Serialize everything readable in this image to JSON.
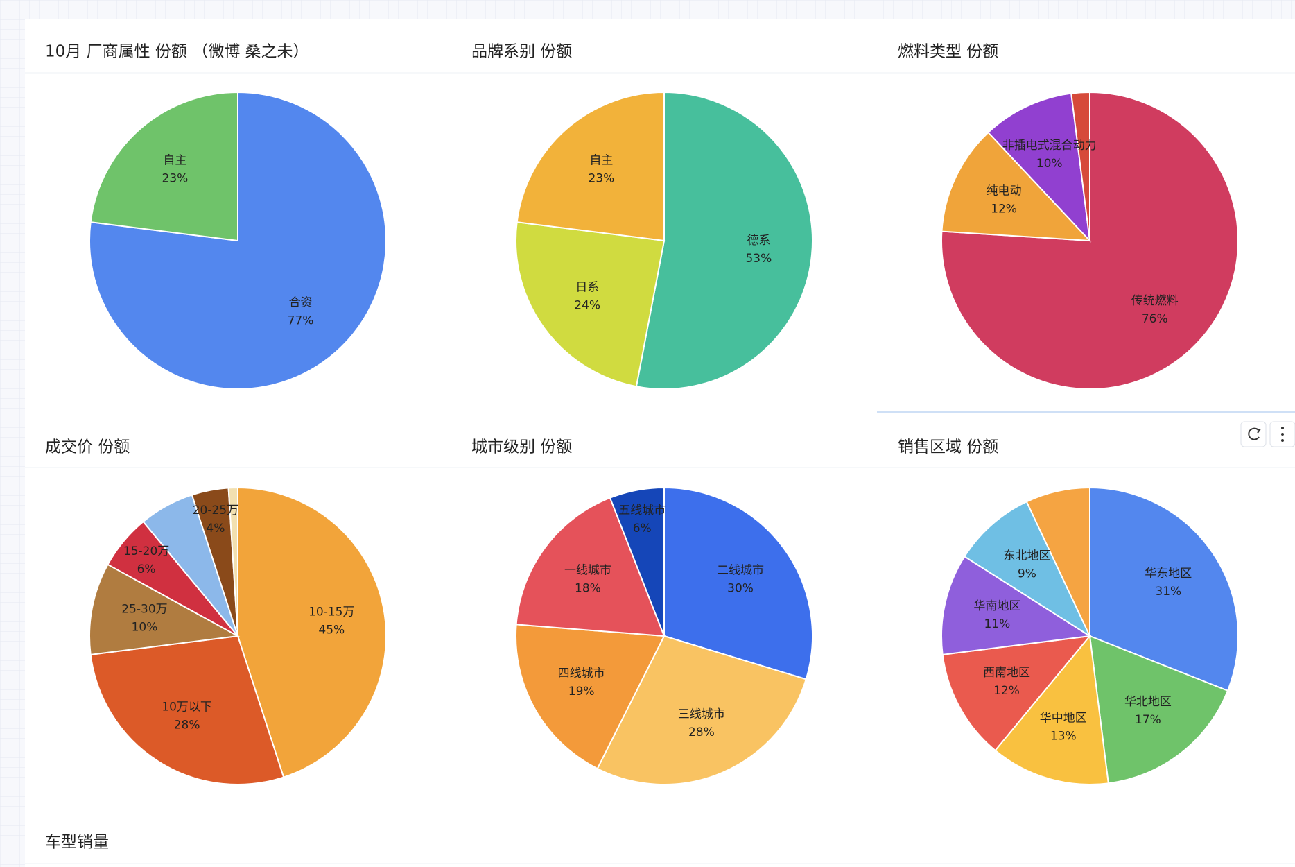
{
  "chart_data": [
    {
      "type": "pie",
      "title": "10月 厂商属性 份额 （微博 桑之未）",
      "categories": [
        "合资",
        "自主"
      ],
      "values": [
        77,
        23
      ],
      "value_labels": [
        "77%",
        "23%"
      ],
      "colors": [
        "#5387ee",
        "#6fc36a"
      ]
    },
    {
      "type": "pie",
      "title": "品牌系别 份额",
      "categories": [
        "德系",
        "日系",
        "自主"
      ],
      "values": [
        53,
        24,
        23
      ],
      "value_labels": [
        "53%",
        "24%",
        "23%"
      ],
      "colors": [
        "#47bf9c",
        "#d0db40",
        "#f2b23a"
      ]
    },
    {
      "type": "pie",
      "title": "燃料类型 份额",
      "categories": [
        "传统燃料",
        "纯电动",
        "非插电式混合动力",
        null
      ],
      "values": [
        76,
        12,
        10,
        2
      ],
      "value_labels": [
        "76%",
        "12%",
        "10%",
        null
      ],
      "colors": [
        "#d03c5f",
        "#f0a43a",
        "#9140d0",
        "#d64a3a"
      ]
    },
    {
      "type": "pie",
      "title": "成交价 份额",
      "categories": [
        "10-15万",
        "10万以下",
        "25-30万",
        "15-20万",
        null,
        "20-25万",
        null
      ],
      "values": [
        45,
        28,
        10,
        6,
        6,
        4,
        1
      ],
      "value_labels": [
        "45%",
        "28%",
        "10%",
        "6%",
        null,
        "4%",
        null
      ],
      "colors": [
        "#f2a43a",
        "#dc5a28",
        "#b07c40",
        "#d03040",
        "#8cb8ea",
        "#8a4a1a",
        "#f2e0b0"
      ]
    },
    {
      "type": "pie",
      "title": "城市级别 份额",
      "categories": [
        "二线城市",
        "三线城市",
        "四线城市",
        "一线城市",
        "五线城市"
      ],
      "values": [
        30,
        28,
        19,
        18,
        6
      ],
      "value_labels": [
        "30%",
        "28%",
        "19%",
        "18%",
        "6%"
      ],
      "colors": [
        "#3d6fec",
        "#f9c362",
        "#f39a3a",
        "#e5525a",
        "#1546b8"
      ]
    },
    {
      "type": "pie",
      "title": "销售区域 份额",
      "categories": [
        "华东地区",
        "华北地区",
        "华中地区",
        "西南地区",
        "华南地区",
        "东北地区",
        null
      ],
      "values": [
        31,
        17,
        13,
        12,
        11,
        9,
        7
      ],
      "value_labels": [
        "31%",
        "17%",
        "13%",
        "12%",
        "11%",
        "9%",
        null
      ],
      "colors": [
        "#5387ee",
        "#6fc36a",
        "#f9c140",
        "#ea5a4e",
        "#8f5fdc",
        "#6fbfe4",
        "#f5a442"
      ]
    }
  ],
  "section": {
    "title": "车型销量"
  }
}
